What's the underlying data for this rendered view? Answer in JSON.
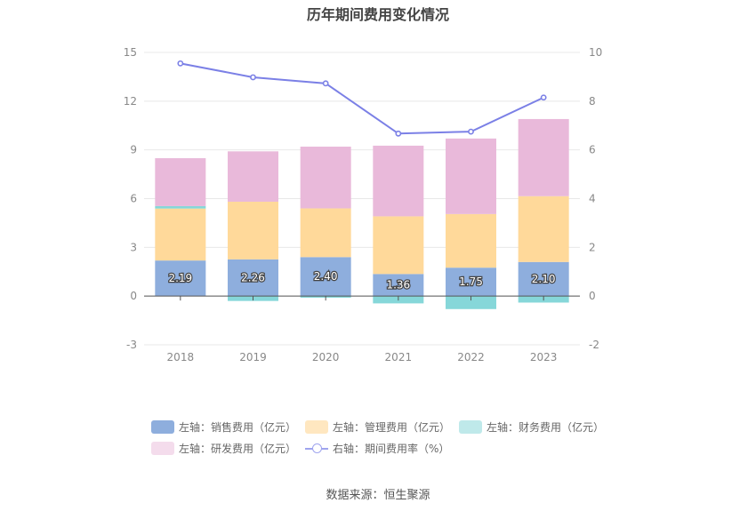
{
  "chart_data": {
    "type": "bar",
    "title": "历年期间费用变化情况",
    "categories": [
      "2018",
      "2019",
      "2020",
      "2021",
      "2022",
      "2023"
    ],
    "stacked": true,
    "left_axis": {
      "min": -3,
      "max": 15,
      "ticks": [
        -3,
        0,
        3,
        6,
        9,
        12,
        15
      ]
    },
    "right_axis": {
      "min": -2,
      "max": 10,
      "ticks": [
        -2,
        0,
        2,
        4,
        6,
        8,
        10
      ]
    },
    "series": [
      {
        "name": "左轴：销售费用（亿元）",
        "axis": "left",
        "type": "bar",
        "color": "#8eaedd",
        "values": [
          2.19,
          2.26,
          2.4,
          1.36,
          1.75,
          2.1
        ],
        "labels": [
          "2.19",
          "2.26",
          "2.40",
          "1.36",
          "1.75",
          "2.10"
        ]
      },
      {
        "name": "左轴：管理费用（亿元）",
        "axis": "left",
        "type": "bar",
        "color": "#ffd99a",
        "values": [
          3.2,
          3.55,
          3.0,
          3.55,
          3.3,
          4.05
        ]
      },
      {
        "name": "左轴：财务费用（亿元）",
        "axis": "left",
        "type": "bar",
        "color": "#86d7d9",
        "values": [
          0.15,
          -0.3,
          -0.1,
          -0.45,
          -0.8,
          -0.4
        ]
      },
      {
        "name": "左轴：研发费用（亿元）",
        "axis": "left",
        "type": "bar",
        "color": "#e9b9da",
        "values": [
          2.95,
          3.1,
          3.8,
          4.35,
          4.65,
          4.75
        ]
      },
      {
        "name": "右轴：期间费用率（%）",
        "axis": "right",
        "type": "line",
        "color": "#7b80e6",
        "values": [
          9.55,
          8.98,
          8.73,
          6.67,
          6.75,
          8.15
        ]
      }
    ],
    "legend_position": "bottom",
    "grid": true
  },
  "legend": [
    {
      "label": "左轴：销售费用（亿元）",
      "color": "#8eaedd",
      "kind": "box"
    },
    {
      "label": "左轴：管理费用（亿元）",
      "color": "#ffe7c0",
      "kind": "box"
    },
    {
      "label": "左轴：财务费用（亿元）",
      "color": "#bfe9ea",
      "kind": "box"
    },
    {
      "label": "左轴：研发费用（亿元）",
      "color": "#f4dcec",
      "kind": "box"
    },
    {
      "label": "右轴：期间费用率（%）",
      "color": "#9fa4ee",
      "kind": "line"
    }
  ],
  "source": "数据来源：恒生聚源"
}
